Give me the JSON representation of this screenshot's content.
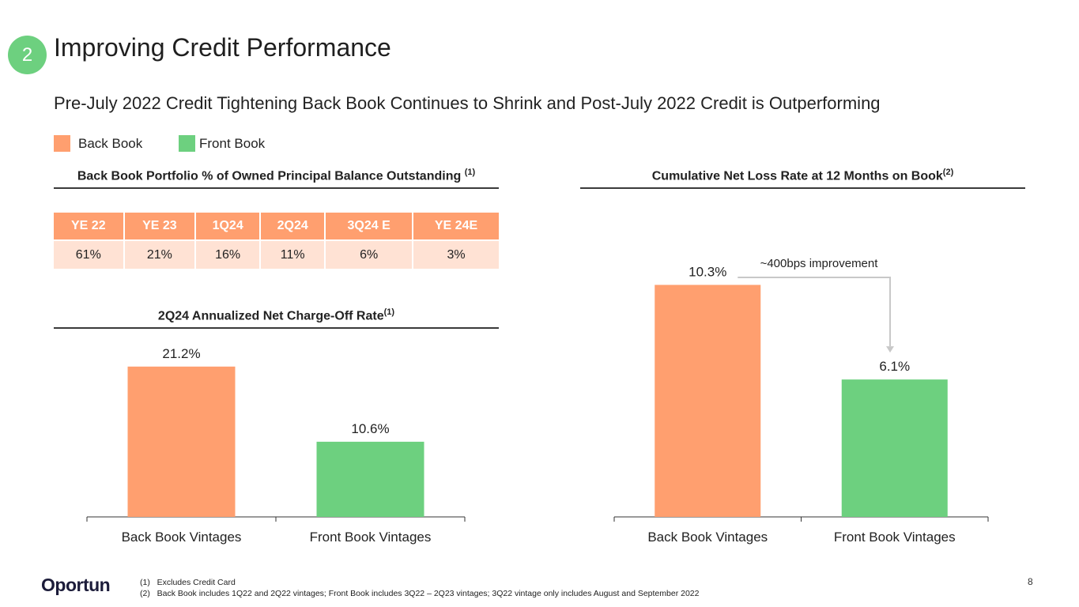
{
  "header": {
    "section_number": "2",
    "title": "Improving Credit Performance",
    "subtitle": "Pre-July 2022 Credit Tightening Back Book Continues to Shrink and Post-July 2022 Credit is Outperforming"
  },
  "legend": {
    "items": [
      {
        "label": "Back Book",
        "color": "#ff9f6f"
      },
      {
        "label": "Front Book",
        "color": "#6dd07f"
      }
    ]
  },
  "table_section": {
    "title": "Back Book Portfolio % of Owned Principal Balance Outstanding",
    "footnote_ref": "(1)",
    "headers": [
      "YE 22",
      "YE 23",
      "1Q24",
      "2Q24",
      "3Q24 E",
      "YE 24E"
    ],
    "values": [
      "61%",
      "21%",
      "16%",
      "11%",
      "6%",
      "3%"
    ]
  },
  "chart_data": [
    {
      "type": "bar",
      "title": "2Q24 Annualized Net Charge-Off Rate",
      "title_ref": "(1)",
      "categories": [
        "Back Book Vintages",
        "Front Book Vintages"
      ],
      "values": [
        21.2,
        10.6
      ],
      "value_labels": [
        "21.2%",
        "10.6%"
      ],
      "colors": [
        "#ff9f6f",
        "#6dd07f"
      ],
      "ylim": [
        0,
        35
      ],
      "grid": false
    },
    {
      "type": "bar",
      "title": "Cumulative Net Loss Rate at 12 Months on Book",
      "title_ref": "(2)",
      "categories": [
        "Back Book Vintages",
        "Front Book Vintages"
      ],
      "values": [
        10.3,
        6.1
      ],
      "value_labels": [
        "10.3%",
        "6.1%"
      ],
      "colors": [
        "#ff9f6f",
        "#6dd07f"
      ],
      "ylim": [
        0,
        14
      ],
      "grid": false,
      "annotation": "~400bps improvement"
    }
  ],
  "footer": {
    "logo_text": "Oportun",
    "footnotes": [
      {
        "num": "(1)",
        "text": "Excludes Credit Card"
      },
      {
        "num": "(2)",
        "text": "Back Book includes 1Q22 and 2Q22 vintages; Front Book includes 3Q22 – 2Q23 vintages; 3Q22 vintage only includes August and September 2022"
      }
    ],
    "page_number": "8"
  }
}
